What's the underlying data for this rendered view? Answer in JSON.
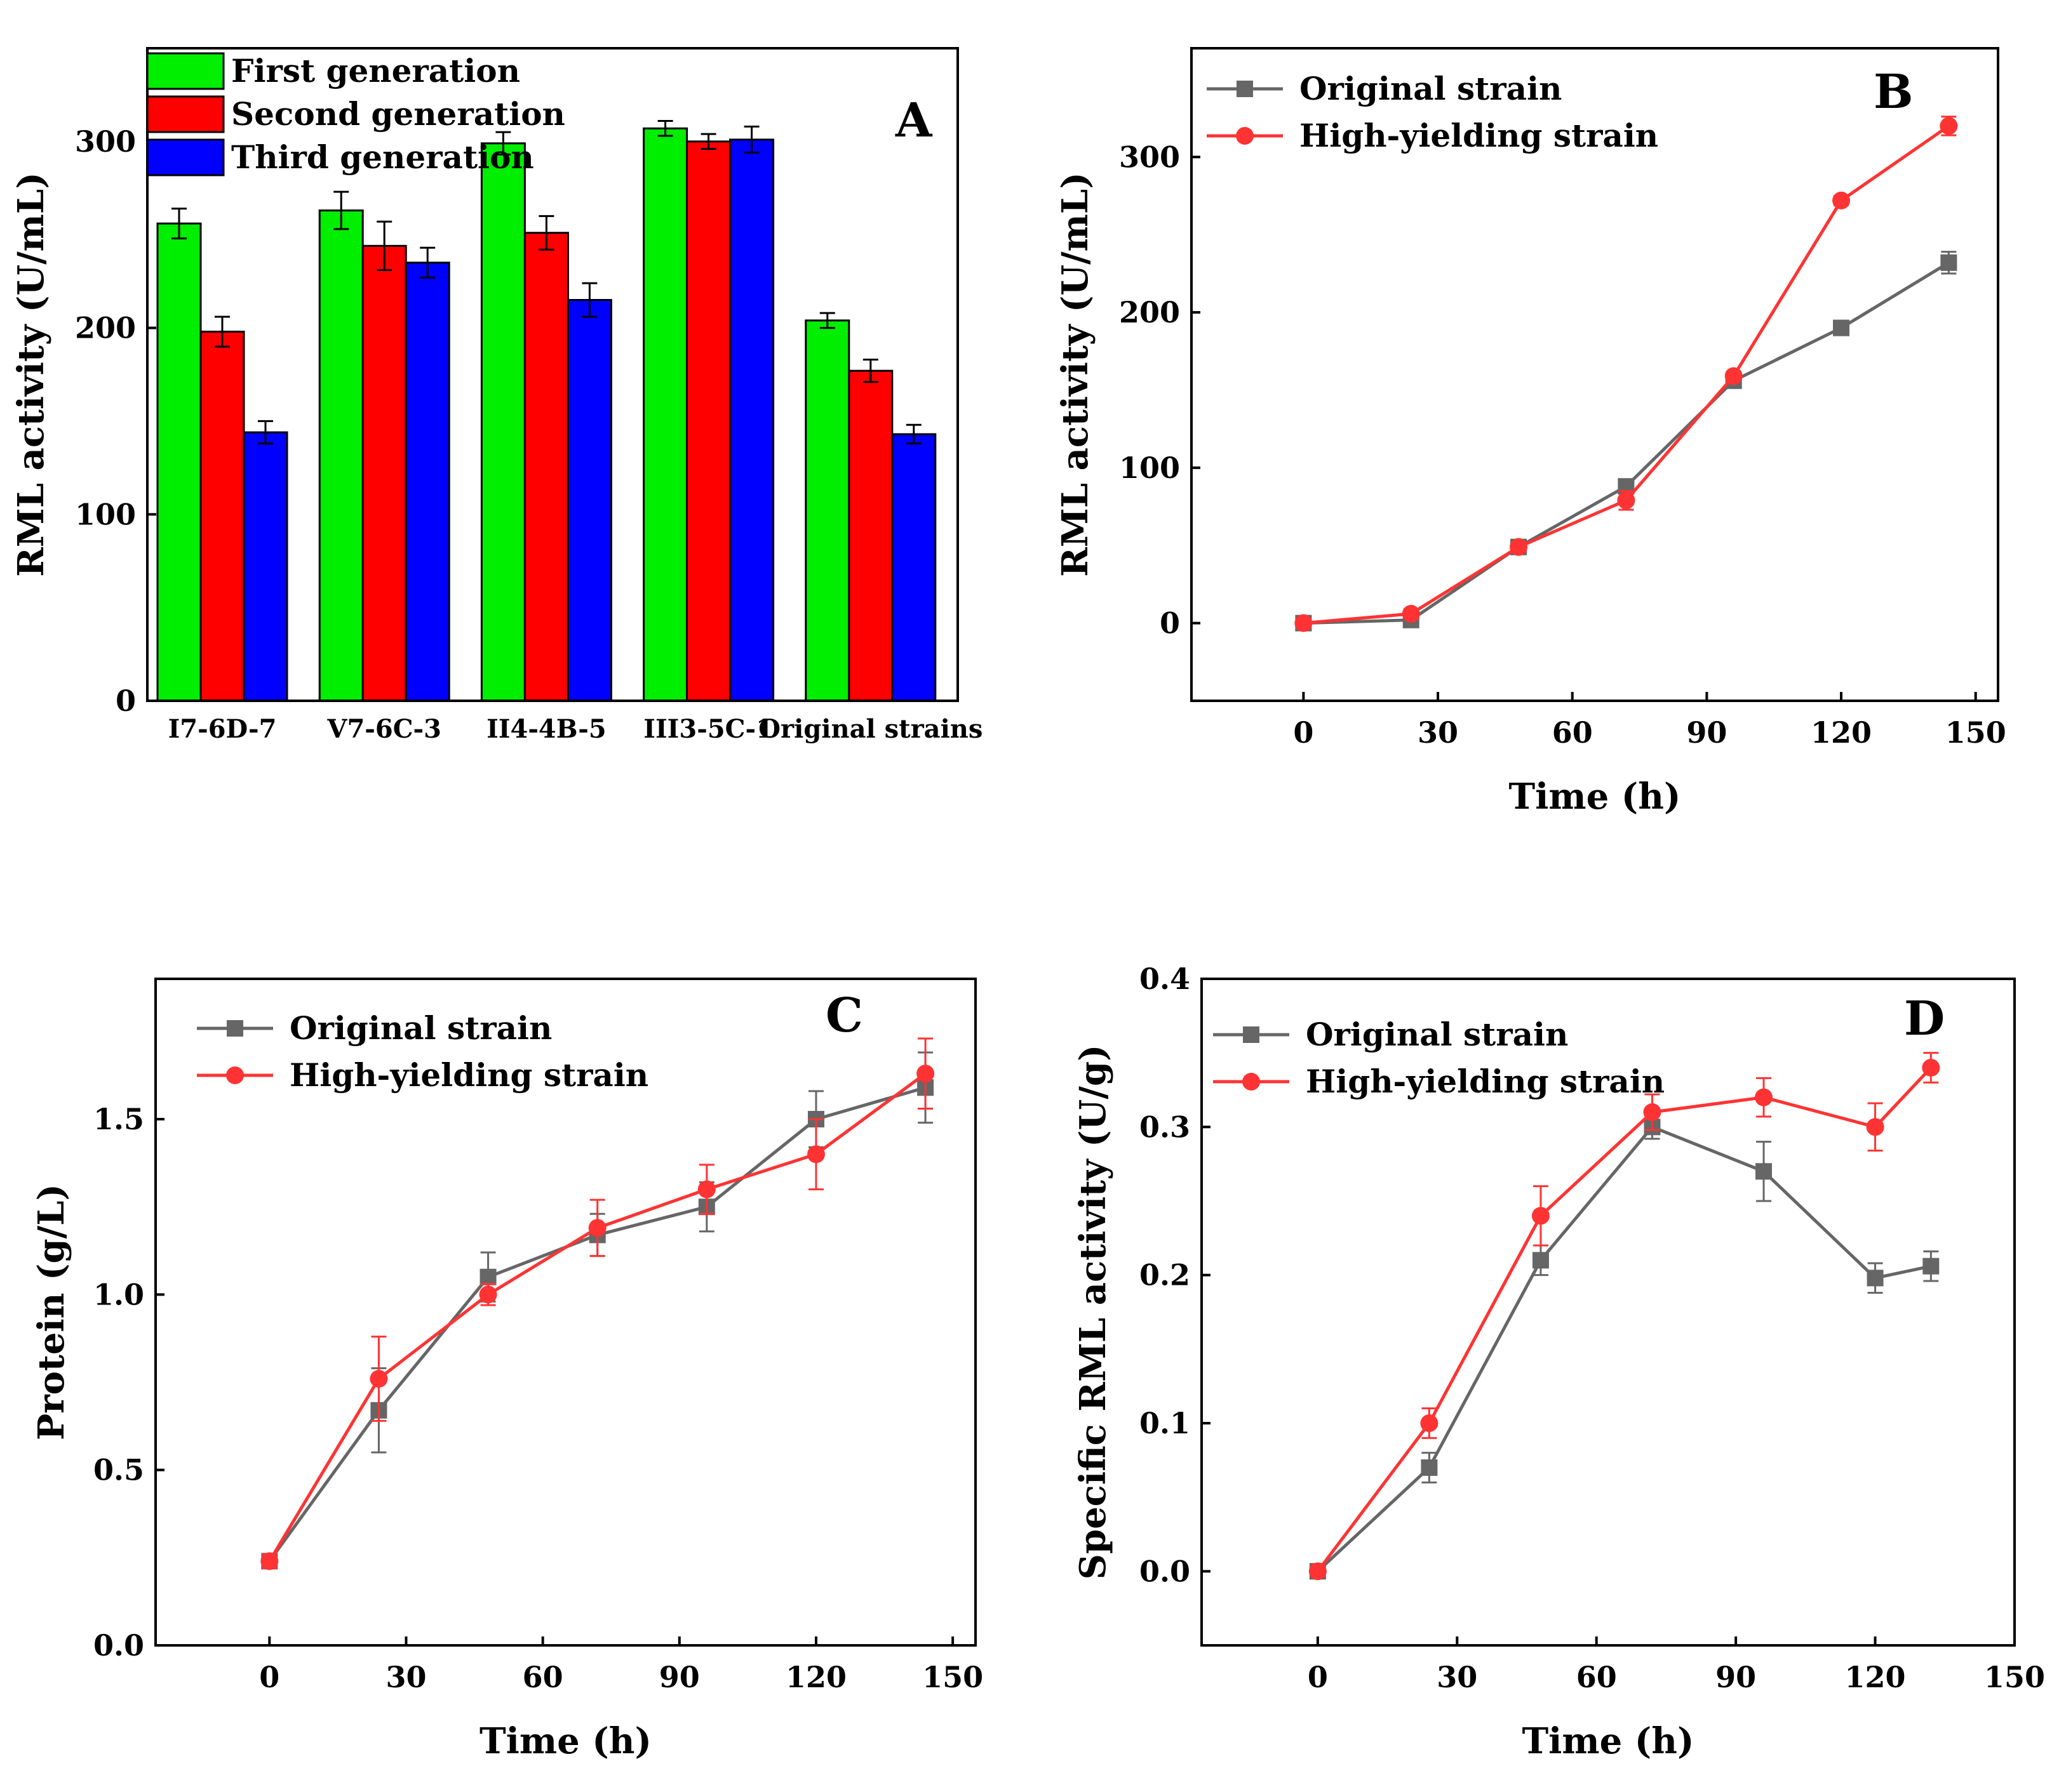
{
  "colors": {
    "first_generation": "#00ee00",
    "second_generation": "#ff0000",
    "third_generation": "#0000ff",
    "original_strain": "#666666",
    "high_yielding_strain": "#ff3333"
  },
  "chart_data": [
    {
      "panel": "A",
      "type": "bar",
      "ylabel": "RML activity (U/mL)",
      "xlabel": "",
      "ylim": [
        0,
        350
      ],
      "yticks": [
        0,
        100,
        200,
        300
      ],
      "categories": [
        "I7-6D-7",
        "V7-6C-3",
        "II4-4B-5",
        "III3-5C-1",
        "Original strains"
      ],
      "series": [
        {
          "name": "First generation",
          "color_key": "first_generation",
          "values": [
            256,
            263,
            299,
            307,
            204
          ],
          "errors": [
            8,
            10,
            6,
            4,
            4
          ]
        },
        {
          "name": "Second generation",
          "color_key": "second_generation",
          "values": [
            198,
            244,
            251,
            300,
            177
          ],
          "errors": [
            8,
            13,
            9,
            4,
            6
          ]
        },
        {
          "name": "Third generation",
          "color_key": "third_generation",
          "values": [
            144,
            235,
            215,
            301,
            143
          ],
          "errors": [
            6,
            8,
            9,
            7,
            5
          ]
        }
      ],
      "legend": "top-left"
    },
    {
      "panel": "B",
      "type": "line",
      "xlabel": "Time (h)",
      "ylabel": "RML activity (U/mL)",
      "xlim": [
        -25,
        155
      ],
      "ylim": [
        -50,
        370
      ],
      "xticks": [
        0,
        30,
        60,
        90,
        120,
        150
      ],
      "yticks": [
        0,
        100,
        200,
        300
      ],
      "series": [
        {
          "name": "Original strain",
          "marker": "square",
          "color_key": "original_strain",
          "x": [
            0,
            24,
            48,
            72,
            96,
            120,
            144
          ],
          "y": [
            0,
            2,
            49,
            88,
            156,
            190,
            232
          ],
          "errors": [
            3,
            2,
            3,
            4,
            3,
            3,
            7
          ]
        },
        {
          "name": "High-yielding strain",
          "marker": "circle",
          "color_key": "high_yielding_strain",
          "x": [
            0,
            24,
            48,
            72,
            96,
            120,
            144
          ],
          "y": [
            0,
            6,
            49,
            79,
            159,
            272,
            320
          ],
          "errors": [
            3,
            3,
            3,
            6,
            3,
            3,
            6
          ]
        }
      ],
      "legend": "top-left"
    },
    {
      "panel": "C",
      "type": "line",
      "xlabel": "Time (h)",
      "ylabel": "Protein (g/L)",
      "xlim": [
        -25,
        155
      ],
      "ylim": [
        0,
        1.9
      ],
      "xticks": [
        0,
        30,
        60,
        90,
        120,
        150
      ],
      "yticks": [
        "0.0",
        "0.5",
        "1.0",
        "1.5"
      ],
      "series": [
        {
          "name": "Original strain",
          "marker": "square",
          "color_key": "original_strain",
          "x": [
            0,
            24,
            48,
            72,
            96,
            120,
            144
          ],
          "y": [
            0.24,
            0.67,
            1.05,
            1.17,
            1.25,
            1.5,
            1.59
          ],
          "errors": [
            0.02,
            0.12,
            0.07,
            0.06,
            0.07,
            0.08,
            0.1
          ]
        },
        {
          "name": "High-yielding strain",
          "marker": "circle",
          "color_key": "high_yielding_strain",
          "x": [
            0,
            24,
            48,
            72,
            96,
            120,
            144
          ],
          "y": [
            0.24,
            0.76,
            1.0,
            1.19,
            1.3,
            1.4,
            1.63
          ],
          "errors": [
            0.02,
            0.12,
            0.03,
            0.08,
            0.07,
            0.1,
            0.1
          ]
        }
      ],
      "legend": "top-left"
    },
    {
      "panel": "D",
      "type": "line",
      "xlabel": "Time (h)",
      "ylabel": "Specific RML activity (U/g)",
      "xlim": [
        -25,
        150
      ],
      "ylim": [
        -0.05,
        0.4
      ],
      "xticks": [
        0,
        30,
        60,
        90,
        120,
        150
      ],
      "yticks": [
        "0.0",
        "0.1",
        "0.2",
        "0.3",
        "0.4"
      ],
      "series": [
        {
          "name": "Original strain",
          "marker": "square",
          "color_key": "original_strain",
          "x": [
            0,
            24,
            48,
            72,
            96,
            120,
            132
          ],
          "y": [
            0,
            0.07,
            0.21,
            0.3,
            0.27,
            0.198,
            0.206
          ],
          "errors": [
            0.003,
            0.01,
            0.01,
            0.008,
            0.02,
            0.01,
            0.01
          ]
        },
        {
          "name": "High-yielding strain",
          "marker": "circle",
          "color_key": "high_yielding_strain",
          "x": [
            0,
            24,
            48,
            72,
            96,
            120,
            132
          ],
          "y": [
            0,
            0.1,
            0.24,
            0.31,
            0.32,
            0.3,
            0.34
          ],
          "errors": [
            0.003,
            0.01,
            0.02,
            0.012,
            0.013,
            0.016,
            0.01
          ]
        }
      ],
      "legend": "top-left"
    }
  ]
}
